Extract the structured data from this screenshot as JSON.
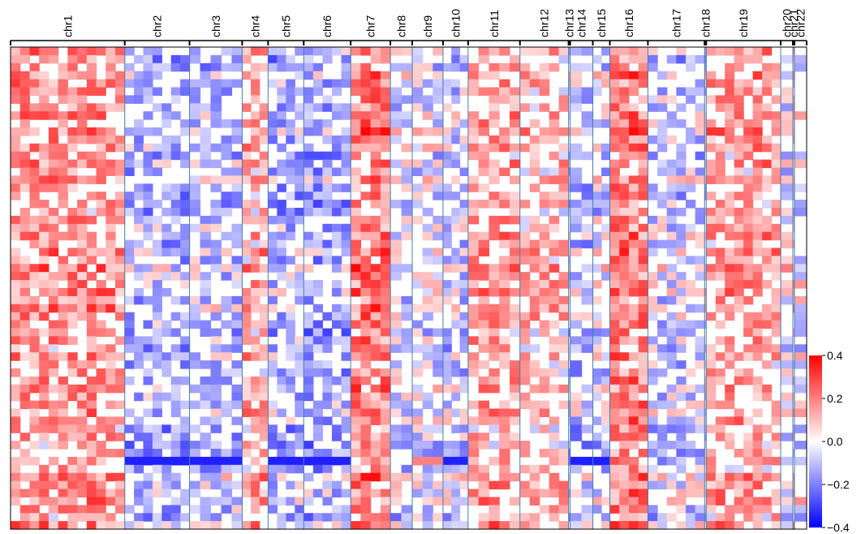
{
  "chart_data": {
    "type": "heatmap",
    "title": "",
    "xlabel": "",
    "ylabel": "",
    "rows": 60,
    "chromosomes": [
      "chr1",
      "chr2",
      "chr3",
      "chr4",
      "chr5",
      "chr6",
      "chr7",
      "chr8",
      "chr9",
      "chr10",
      "chr11",
      "chr12",
      "chr13",
      "chr14",
      "chr15",
      "chr16",
      "chr17",
      "chr18",
      "chr19",
      "chr20",
      "chr21",
      "chr22"
    ],
    "chromosome_weights": [
      141,
      80,
      65,
      32,
      44,
      58,
      49,
      27,
      38,
      31,
      64,
      60,
      2,
      28,
      21,
      47,
      70,
      2,
      92,
      15,
      2,
      15
    ],
    "chromosome_mean_pattern": [
      0.14,
      -0.08,
      -0.06,
      0.1,
      -0.08,
      -0.1,
      0.18,
      -0.04,
      -0.02,
      -0.05,
      0.12,
      0.08,
      -0.05,
      -0.06,
      -0.03,
      0.18,
      -0.04,
      -0.02,
      0.12,
      0.0,
      0.05,
      0.0
    ],
    "highlighted_rows": [
      {
        "row": 51,
        "chromosomes": [
          "chr2",
          "chr3",
          "chr5",
          "chr6",
          "chr10",
          "chr14",
          "chr15"
        ],
        "value": -0.35
      },
      {
        "row": 51,
        "chromosomes": [
          "chr9"
        ],
        "value": 0.2
      }
    ],
    "colorbar": {
      "min": -0.4,
      "max": 0.4,
      "ticks": [
        0.4,
        0.2,
        0.0,
        -0.2,
        -0.4
      ],
      "tick_labels": [
        "0.4",
        "0.2",
        "0.0",
        "−0.2",
        "−0.4"
      ],
      "colors": {
        "low": "#0000ff",
        "mid": "#ffffff",
        "high": "#ff0000"
      }
    }
  },
  "colors": {
    "divider": "#4a7fa8",
    "frame": "#000000"
  }
}
